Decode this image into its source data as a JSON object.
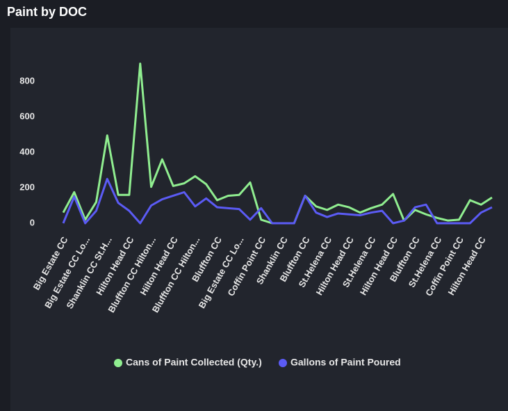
{
  "chart_data": {
    "type": "line",
    "title": "Paint by DOC",
    "categories": [
      "Big Estate CC",
      null,
      "Big Estate CC Lo...",
      null,
      "Shanklin CC St.H...",
      null,
      "Hilton Head CC",
      null,
      "Bluffton CC Hilton...",
      null,
      "Hilton Head CC",
      null,
      "Bluffton CC Hilton...",
      null,
      "Bluffton CC",
      null,
      "Big Estate CC Lo...",
      null,
      "Coffin Point CC",
      null,
      "Shanklin CC",
      null,
      "Bluffton CC",
      null,
      "St.Helena CC",
      null,
      "Hilton Head CC",
      null,
      "St.Helena CC",
      null,
      "Hilton Head CC",
      null,
      "Bluffton CC",
      null,
      "St.Helena CC",
      null,
      "Coffin Point CC",
      null,
      "Hilton Head CC",
      null
    ],
    "series": [
      {
        "name": "Cans of Paint Collected (Qty.)",
        "color": "#90ee90",
        "values": [
          60,
          175,
          20,
          120,
          495,
          160,
          160,
          900,
          205,
          360,
          210,
          225,
          265,
          220,
          130,
          155,
          160,
          230,
          20,
          0,
          0,
          0,
          155,
          95,
          75,
          105,
          90,
          60,
          85,
          105,
          165,
          15,
          75,
          50,
          30,
          15,
          20,
          130,
          105,
          145
        ]
      },
      {
        "name": "Gallons of Paint Poured",
        "color": "#5b5bf5",
        "values": [
          0,
          150,
          0,
          70,
          250,
          115,
          70,
          0,
          100,
          135,
          155,
          175,
          95,
          140,
          90,
          85,
          80,
          20,
          85,
          0,
          0,
          0,
          155,
          60,
          35,
          55,
          50,
          45,
          60,
          70,
          0,
          15,
          90,
          105,
          0,
          0,
          0,
          0,
          60,
          90
        ]
      }
    ],
    "ylim": [
      -40,
      900
    ],
    "yticks": [
      0,
      200,
      400,
      600,
      800
    ],
    "grid": false
  }
}
